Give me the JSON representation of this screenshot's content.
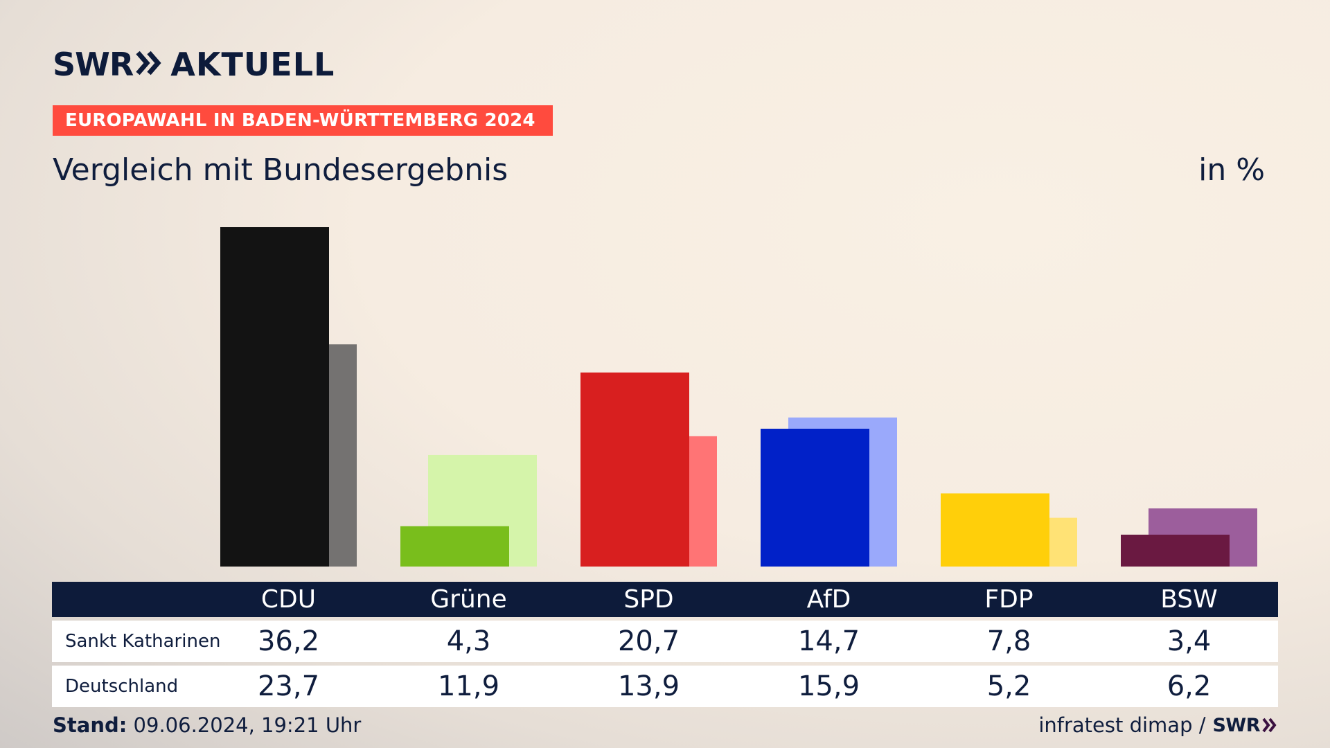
{
  "brand": {
    "logo_left": "SWR",
    "logo_right": "AKTUELL"
  },
  "banner": "EUROPAWAHL IN BADEN-WÜRTTEMBERG 2024",
  "subtitle": "Vergleich mit Bundesergebnis",
  "unit": "in %",
  "footer": {
    "stand_label": "Stand:",
    "stand_value": "09.06.2024, 19:21 Uhr",
    "source": "infratest dimap /",
    "source_brand": "SWR"
  },
  "chart_data": {
    "type": "bar",
    "categories": [
      "CDU",
      "Grüne",
      "SPD",
      "AfD",
      "FDP",
      "BSW"
    ],
    "series": [
      {
        "name": "Sankt Katharinen",
        "values": [
          36.2,
          4.3,
          20.7,
          14.7,
          7.8,
          3.4
        ],
        "labels": [
          "36,2",
          "4,3",
          "20,7",
          "14,7",
          "7,8",
          "3,4"
        ]
      },
      {
        "name": "Deutschland",
        "values": [
          23.7,
          11.9,
          13.9,
          15.9,
          5.2,
          6.2
        ],
        "labels": [
          "23,7",
          "11,9",
          "13,9",
          "15,9",
          "5,2",
          "6,2"
        ]
      }
    ],
    "colors": {
      "primary": [
        "#131313",
        "#79be1c",
        "#d81f1f",
        "#0121c8",
        "#ffcf0a",
        "#6a1941"
      ],
      "secondary": [
        "#747271",
        "#d5f4aa",
        "#ff7475",
        "#9aa9fb",
        "#ffe275",
        "#9c5e9c"
      ]
    },
    "ylim": [
      0,
      36.2
    ],
    "grid": false
  }
}
